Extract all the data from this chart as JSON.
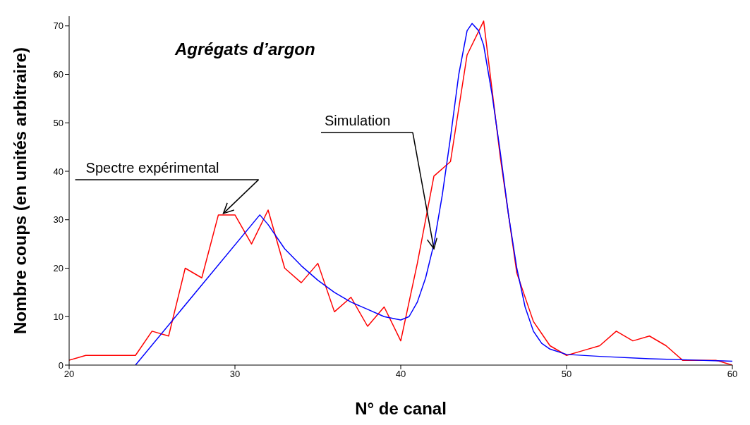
{
  "chart_data": {
    "type": "line",
    "title": "Agrégats d’argon",
    "xlabel": "N° de canal",
    "ylabel": "Nombre coups (en unités arbitraire)",
    "xlim": [
      20,
      60
    ],
    "ylim": [
      0,
      72
    ],
    "xticks": [
      20,
      30,
      40,
      50,
      60
    ],
    "yticks": [
      0,
      10,
      20,
      30,
      40,
      50,
      60,
      70
    ],
    "marker": "none",
    "line_style": "solid",
    "series": [
      {
        "color": "#ff0000",
        "x": [
          20,
          21,
          22,
          23,
          24,
          25,
          26,
          27,
          28,
          29,
          30,
          31,
          32,
          33,
          34,
          35,
          36,
          37,
          38,
          39,
          40,
          41,
          42,
          43,
          44,
          45,
          46,
          47,
          48,
          49,
          50,
          51,
          52,
          53,
          54,
          55,
          56,
          57,
          58,
          59,
          60
        ],
        "values": [
          1,
          2,
          2,
          2,
          2,
          7,
          6,
          20,
          18,
          31,
          31,
          25,
          32,
          20,
          17,
          21,
          11,
          14,
          8,
          12,
          5,
          21,
          39,
          42,
          64,
          71,
          43,
          19,
          9,
          4,
          2,
          3,
          4,
          7,
          5,
          6,
          4,
          1,
          1,
          1,
          0
        ]
      },
      {
        "color": "#0000ff",
        "x": [
          24,
          31.5,
          32,
          33,
          34,
          35,
          36,
          37,
          38,
          39,
          40,
          40.5,
          41,
          41.5,
          42,
          42.5,
          43,
          43.5,
          44,
          44.3,
          44.7,
          45,
          45.5,
          46,
          46.5,
          47,
          47.5,
          48,
          48.5,
          49,
          50,
          52,
          55,
          58,
          60
        ],
        "values": [
          0,
          31,
          29,
          24,
          20.5,
          17.5,
          15,
          13,
          11.5,
          10,
          9.3,
          10,
          13,
          18,
          25,
          35,
          47,
          60,
          69,
          70.5,
          69,
          66,
          56,
          44,
          31,
          20,
          12,
          7,
          4.5,
          3.3,
          2.2,
          1.8,
          1.3,
          1,
          0.8
        ]
      }
    ],
    "annotations": [
      {
        "text": "Spectre expérimental",
        "x": 29.3,
        "y": 31
      },
      "Simulation"
    ]
  }
}
